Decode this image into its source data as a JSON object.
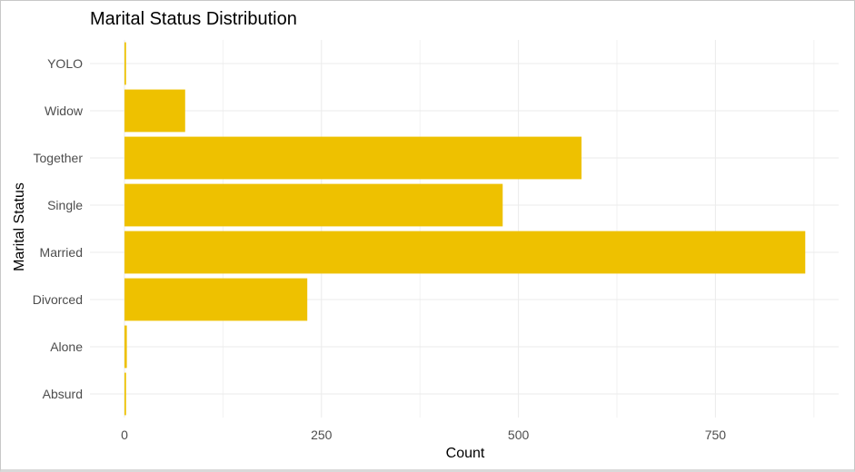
{
  "chart_data": {
    "type": "bar",
    "orientation": "horizontal",
    "title": "Marital Status Distribution",
    "xlabel": "Count",
    "ylabel": "Marital Status",
    "categories": [
      "Absurd",
      "Alone",
      "Divorced",
      "Married",
      "Single",
      "Together",
      "Widow",
      "YOLO"
    ],
    "values": [
      2,
      3,
      232,
      864,
      480,
      580,
      77,
      2
    ],
    "xlim": [
      0,
      900
    ],
    "xticks": [
      0,
      250,
      500,
      750
    ],
    "grid": true,
    "bar_color": "#EEC100"
  }
}
